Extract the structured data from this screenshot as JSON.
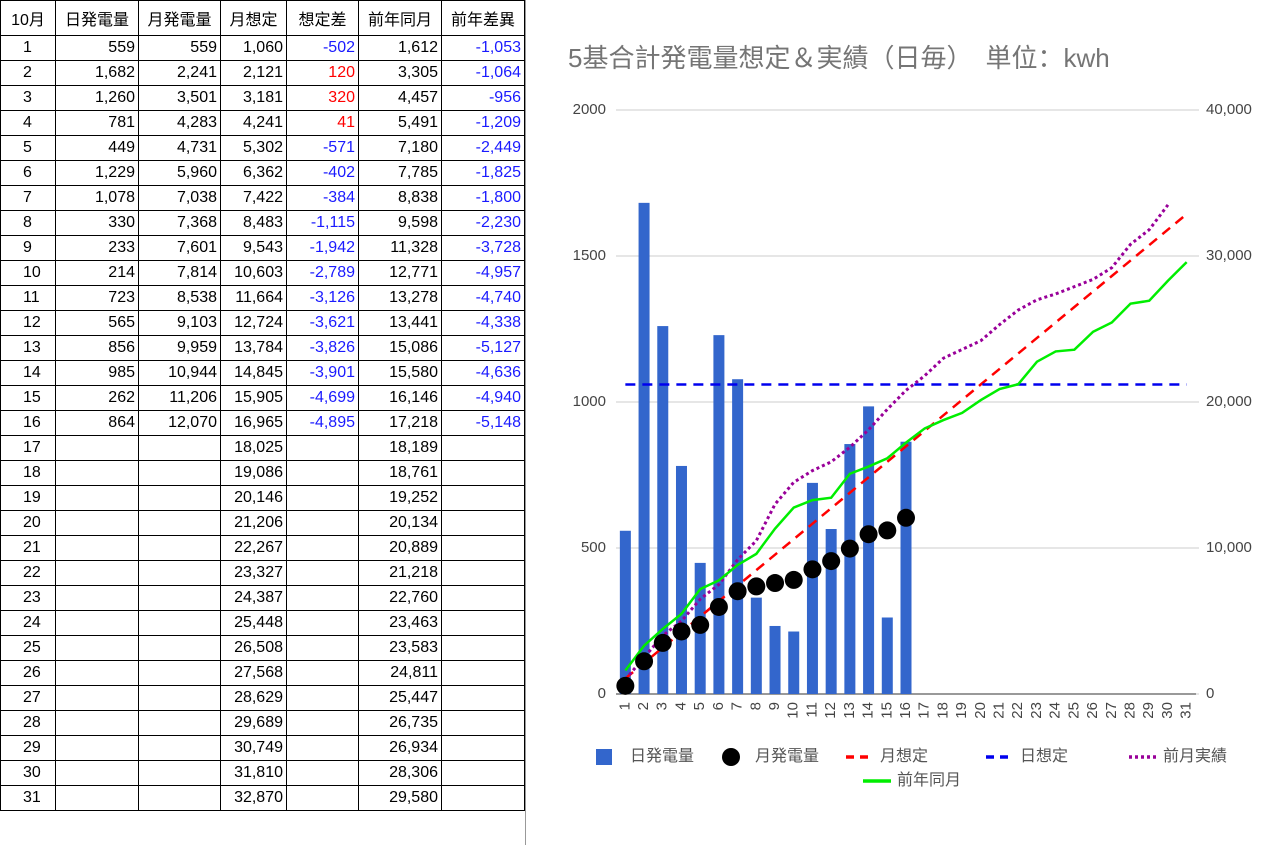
{
  "table": {
    "header": [
      "10月",
      "日発電量",
      "月発電量",
      "月想定",
      "想定差",
      "前年同月",
      "前年差異"
    ],
    "rows": [
      [
        "1",
        "559",
        "559",
        "1,060",
        "-502",
        "1,612",
        "-1,053"
      ],
      [
        "2",
        "1,682",
        "2,241",
        "2,121",
        "120",
        "3,305",
        "-1,064"
      ],
      [
        "3",
        "1,260",
        "3,501",
        "3,181",
        "320",
        "4,457",
        "-956"
      ],
      [
        "4",
        "781",
        "4,283",
        "4,241",
        "41",
        "5,491",
        "-1,209"
      ],
      [
        "5",
        "449",
        "4,731",
        "5,302",
        "-571",
        "7,180",
        "-2,449"
      ],
      [
        "6",
        "1,229",
        "5,960",
        "6,362",
        "-402",
        "7,785",
        "-1,825"
      ],
      [
        "7",
        "1,078",
        "7,038",
        "7,422",
        "-384",
        "8,838",
        "-1,800"
      ],
      [
        "8",
        "330",
        "7,368",
        "8,483",
        "-1,115",
        "9,598",
        "-2,230"
      ],
      [
        "9",
        "233",
        "7,601",
        "9,543",
        "-1,942",
        "11,328",
        "-3,728"
      ],
      [
        "10",
        "214",
        "7,814",
        "10,603",
        "-2,789",
        "12,771",
        "-4,957"
      ],
      [
        "11",
        "723",
        "8,538",
        "11,664",
        "-3,126",
        "13,278",
        "-4,740"
      ],
      [
        "12",
        "565",
        "9,103",
        "12,724",
        "-3,621",
        "13,441",
        "-4,338"
      ],
      [
        "13",
        "856",
        "9,959",
        "13,784",
        "-3,826",
        "15,086",
        "-5,127"
      ],
      [
        "14",
        "985",
        "10,944",
        "14,845",
        "-3,901",
        "15,580",
        "-4,636"
      ],
      [
        "15",
        "262",
        "11,206",
        "15,905",
        "-4,699",
        "16,146",
        "-4,940"
      ],
      [
        "16",
        "864",
        "12,070",
        "16,965",
        "-4,895",
        "17,218",
        "-5,148"
      ],
      [
        "17",
        null,
        null,
        "18,025",
        null,
        "18,189",
        null
      ],
      [
        "18",
        null,
        null,
        "19,086",
        null,
        "18,761",
        null
      ],
      [
        "19",
        null,
        null,
        "20,146",
        null,
        "19,252",
        null
      ],
      [
        "20",
        null,
        null,
        "21,206",
        null,
        "20,134",
        null
      ],
      [
        "21",
        null,
        null,
        "22,267",
        null,
        "20,889",
        null
      ],
      [
        "22",
        null,
        null,
        "23,327",
        null,
        "21,218",
        null
      ],
      [
        "23",
        null,
        null,
        "24,387",
        null,
        "22,760",
        null
      ],
      [
        "24",
        null,
        null,
        "25,448",
        null,
        "23,463",
        null
      ],
      [
        "25",
        null,
        null,
        "26,508",
        null,
        "23,583",
        null
      ],
      [
        "26",
        null,
        null,
        "27,568",
        null,
        "24,811",
        null
      ],
      [
        "27",
        null,
        null,
        "28,629",
        null,
        "25,447",
        null
      ],
      [
        "28",
        null,
        null,
        "29,689",
        null,
        "26,735",
        null
      ],
      [
        "29",
        null,
        null,
        "30,749",
        null,
        "26,934",
        null
      ],
      [
        "30",
        null,
        null,
        "31,810",
        null,
        "28,306",
        null
      ],
      [
        "31",
        null,
        null,
        "32,870",
        null,
        "29,580",
        null
      ]
    ]
  },
  "chart_data": {
    "type": "combo",
    "title": "5基合計発電量想定＆実績（日毎）　単位：kwh",
    "categories": [
      "1",
      "2",
      "3",
      "4",
      "5",
      "6",
      "7",
      "8",
      "9",
      "10",
      "11",
      "12",
      "13",
      "14",
      "15",
      "16",
      "17",
      "18",
      "19",
      "20",
      "21",
      "22",
      "23",
      "24",
      "25",
      "26",
      "27",
      "28",
      "29",
      "30",
      "31"
    ],
    "ylim": [
      0,
      2000
    ],
    "yticks": [
      0,
      500,
      1000,
      1500,
      2000
    ],
    "y2lim": [
      0,
      40000
    ],
    "y2ticks": [
      0,
      {
        "value": 10000,
        "label": "10,000"
      },
      {
        "value": 20000,
        "label": "20,000"
      },
      {
        "value": 30000,
        "label": "30,000"
      },
      {
        "value": 40000,
        "label": "40,000"
      }
    ],
    "grid": true,
    "legend": "bottom",
    "series": [
      {
        "name": "日発電量",
        "type": "bar",
        "axis": "y",
        "color": "#3366cc",
        "values": [
          559,
          1682,
          1260,
          781,
          449,
          1229,
          1078,
          330,
          233,
          214,
          723,
          565,
          856,
          985,
          262,
          864,
          null,
          null,
          null,
          null,
          null,
          null,
          null,
          null,
          null,
          null,
          null,
          null,
          null,
          null,
          null
        ]
      },
      {
        "name": "月発電量",
        "type": "scatter",
        "axis": "y2",
        "color": "#000000",
        "values": [
          559,
          2241,
          3501,
          4283,
          4731,
          5960,
          7038,
          7368,
          7601,
          7814,
          8538,
          9103,
          9959,
          10944,
          11206,
          12070,
          null,
          null,
          null,
          null,
          null,
          null,
          null,
          null,
          null,
          null,
          null,
          null,
          null,
          null,
          null
        ]
      },
      {
        "name": "月想定",
        "type": "line",
        "axis": "y2",
        "color": "#ff0000",
        "dash": "dashed",
        "values": [
          1060,
          2121,
          3181,
          4241,
          5302,
          6362,
          7422,
          8483,
          9543,
          10603,
          11664,
          12724,
          13784,
          14845,
          15905,
          16965,
          18025,
          19086,
          20146,
          21206,
          22267,
          23327,
          24387,
          25448,
          26508,
          27568,
          28629,
          29689,
          30749,
          31810,
          32870
        ]
      },
      {
        "name": "日想定",
        "type": "line",
        "axis": "y",
        "color": "#0000ee",
        "dash": "dashed",
        "values": [
          1060,
          1060,
          1060,
          1060,
          1060,
          1060,
          1060,
          1060,
          1060,
          1060,
          1060,
          1060,
          1060,
          1060,
          1060,
          1060,
          1060,
          1060,
          1060,
          1060,
          1060,
          1060,
          1060,
          1060,
          1060,
          1060,
          1060,
          1060,
          1060,
          1060,
          1060
        ]
      },
      {
        "name": "前月実績",
        "type": "line",
        "axis": "y2",
        "color": "#990099",
        "dash": "dotted",
        "values": [
          1000,
          2500,
          4000,
          5000,
          6500,
          7500,
          9200,
          10500,
          13000,
          14500,
          15300,
          15900,
          16900,
          18100,
          19500,
          20800,
          21800,
          23000,
          23600,
          24200,
          25300,
          26300,
          27000,
          27400,
          27900,
          28400,
          29200,
          30800,
          31800,
          33500,
          null
        ]
      },
      {
        "name": "前年同月",
        "type": "line",
        "axis": "y2",
        "color": "#00ee00",
        "dash": "solid",
        "values": [
          1612,
          3305,
          4457,
          5491,
          7180,
          7785,
          8838,
          9598,
          11328,
          12771,
          13278,
          13441,
          15086,
          15580,
          16146,
          17218,
          18189,
          18761,
          19252,
          20134,
          20889,
          21218,
          22760,
          23463,
          23583,
          24811,
          25447,
          26735,
          26934,
          28306,
          29580
        ]
      }
    ]
  }
}
